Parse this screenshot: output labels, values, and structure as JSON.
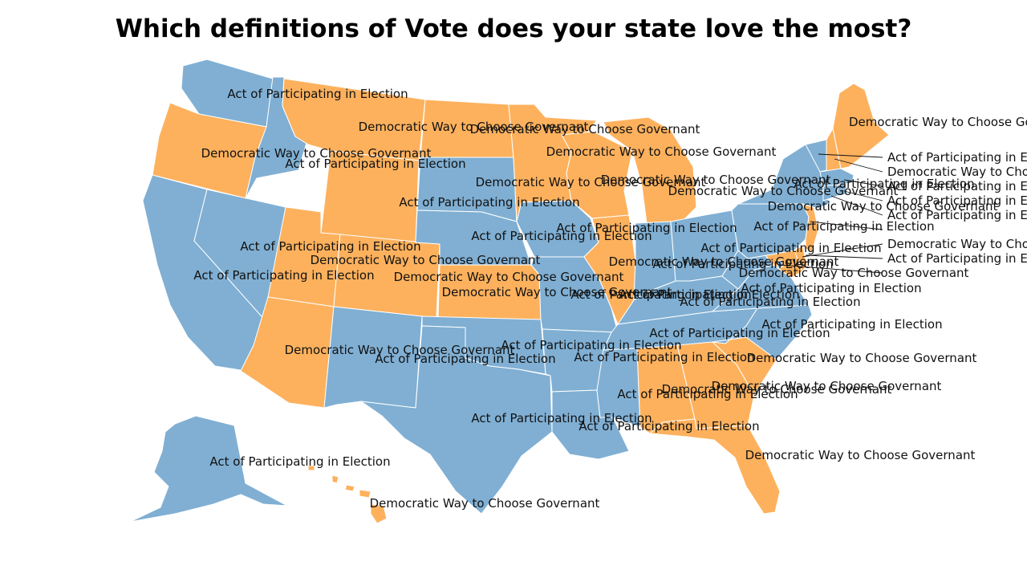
{
  "title": "Which definitions of Vote does your state love the most?",
  "categories": {
    "A": {
      "label": "Act of Participating in Election",
      "color": "#80afd3"
    },
    "D": {
      "label": "Democratic Way to Choose Governant",
      "color": "#fdb15d"
    }
  },
  "states": {
    "WA": "A",
    "OR": "D",
    "CA": "A",
    "NV": "A",
    "ID": "A",
    "MT": "D",
    "WY": "D",
    "UT": "D",
    "AZ": "D",
    "CO": "D",
    "NM": "A",
    "ND": "D",
    "SD": "A",
    "NE": "A",
    "KS": "D",
    "OK": "A",
    "TX": "A",
    "MN": "D",
    "IA": "A",
    "MO": "A",
    "AR": "A",
    "LA": "A",
    "WI": "D",
    "IL": "D",
    "MI": "D",
    "IN": "A",
    "OH": "A",
    "KY": "A",
    "TN": "A",
    "MS": "A",
    "AL": "D",
    "GA": "D",
    "FL": "D",
    "SC": "D",
    "NC": "A",
    "VA": "A",
    "WV": "A",
    "PA": "A",
    "NY": "A",
    "ME": "D",
    "NH": "D",
    "VT": "A",
    "MA": "A",
    "RI": "A",
    "CT": "A",
    "NJ": "D",
    "DE": "D",
    "MD": "D",
    "DC": "A",
    "AK": "A",
    "HI": "D"
  }
}
